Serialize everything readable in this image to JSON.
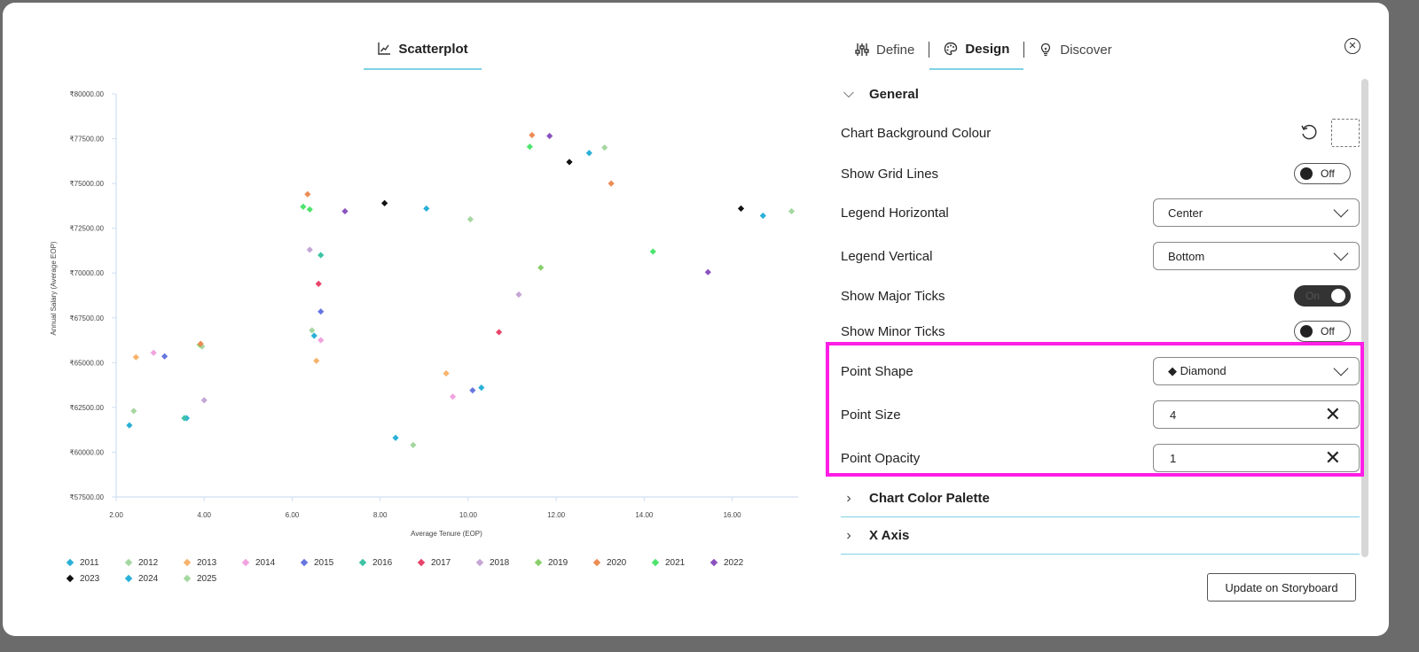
{
  "tabs": {
    "chart": "Scatterplot",
    "define": "Define",
    "design": "Design",
    "discover": "Discover"
  },
  "panel": {
    "general_label": "General",
    "chart_bg_label": "Chart Background Colour",
    "grid_lines": {
      "label": "Show Grid Lines",
      "state": "Off"
    },
    "legend_horizontal": {
      "label": "Legend Horizontal",
      "value": "Center"
    },
    "legend_vertical": {
      "label": "Legend Vertical",
      "value": "Bottom"
    },
    "major_ticks": {
      "label": "Show Major Ticks",
      "state": "On"
    },
    "minor_ticks": {
      "label": "Show Minor Ticks",
      "state": "Off"
    },
    "point_shape": {
      "label": "Point Shape",
      "value": "◆ Diamond"
    },
    "point_size": {
      "label": "Point Size",
      "value": "4"
    },
    "point_opacity": {
      "label": "Point Opacity",
      "value": "1"
    },
    "palette_label": "Chart Color Palette",
    "xaxis_label": "X Axis"
  },
  "update_button": "Update on Storyboard",
  "icons": {
    "chart_tab": "scatter-chart-icon",
    "define": "sliders-icon",
    "design": "palette-icon",
    "discover": "lightbulb-icon",
    "close": "close-icon",
    "reset": "reset-icon"
  },
  "colors": {
    "accent": "#7fd3e6",
    "highlight": "#ff1ee6"
  },
  "chart_data": {
    "type": "scatter",
    "xlabel": "Average Tenure (EOP)",
    "ylabel": "Annual Salary (Average EOP)",
    "xlim": [
      2,
      17.5
    ],
    "ylim": [
      57500,
      80000
    ],
    "xticks": [
      "2.00",
      "4.00",
      "6.00",
      "8.00",
      "10.00",
      "12.00",
      "14.00",
      "16.00"
    ],
    "xtick_values": [
      2,
      4,
      6,
      8,
      10,
      12,
      14,
      16
    ],
    "yticks": [
      "₹57500.00",
      "₹60000.00",
      "₹62500.00",
      "₹65000.00",
      "₹67500.00",
      "₹70000.00",
      "₹72500.00",
      "₹75000.00",
      "₹77500.00",
      "₹80000.00"
    ],
    "ytick_values": [
      57500,
      60000,
      62500,
      65000,
      67500,
      70000,
      72500,
      75000,
      77500,
      80000
    ],
    "grid": false,
    "legend_position": "bottom-left",
    "series": [
      {
        "name": "2011",
        "color": "#2ab0d8",
        "points": [
          [
            2.3,
            61500
          ],
          [
            6.5,
            66500
          ],
          [
            9.05,
            73600
          ],
          [
            12.75,
            76700
          ],
          [
            16.7,
            73200
          ],
          [
            8.35,
            60800
          ],
          [
            10.3,
            63600
          ],
          [
            3.6,
            61900
          ]
        ]
      },
      {
        "name": "2012",
        "color": "#a5d7a0",
        "points": [
          [
            2.4,
            62300
          ],
          [
            6.45,
            66800
          ],
          [
            8.75,
            60400
          ],
          [
            10.05,
            73000
          ],
          [
            13.1,
            77000
          ],
          [
            17.35,
            73450
          ],
          [
            3.95,
            65900
          ]
        ]
      },
      {
        "name": "2013",
        "color": "#f7b36b",
        "points": [
          [
            2.45,
            65300
          ],
          [
            6.55,
            65100
          ],
          [
            9.5,
            64400
          ]
        ]
      },
      {
        "name": "2014",
        "color": "#f1a3df",
        "points": [
          [
            2.85,
            65550
          ],
          [
            6.65,
            66250
          ],
          [
            9.65,
            63100
          ]
        ]
      },
      {
        "name": "2015",
        "color": "#6777e0",
        "points": [
          [
            3.1,
            65350
          ],
          [
            6.65,
            67850
          ],
          [
            10.1,
            63450
          ]
        ]
      },
      {
        "name": "2016",
        "color": "#3ec3a6",
        "points": [
          [
            3.55,
            61900
          ],
          [
            6.65,
            71000
          ]
        ]
      },
      {
        "name": "2017",
        "color": "#e8446a",
        "points": [
          [
            6.6,
            69400
          ],
          [
            10.7,
            66700
          ]
        ]
      },
      {
        "name": "2018",
        "color": "#c5a6d5",
        "points": [
          [
            4.0,
            62900
          ],
          [
            6.4,
            71300
          ],
          [
            11.15,
            68800
          ]
        ]
      },
      {
        "name": "2019",
        "color": "#8bcf6c",
        "points": [
          [
            3.9,
            66000
          ],
          [
            11.65,
            70300
          ]
        ]
      },
      {
        "name": "2020",
        "color": "#ec8d55",
        "points": [
          [
            6.35,
            74400
          ],
          [
            11.45,
            77700
          ],
          [
            13.25,
            75000
          ],
          [
            3.92,
            66050
          ]
        ]
      },
      {
        "name": "2021",
        "color": "#4ee46f",
        "points": [
          [
            6.25,
            73700
          ],
          [
            6.4,
            73550
          ],
          [
            11.4,
            77050
          ],
          [
            14.2,
            71200
          ]
        ]
      },
      {
        "name": "2022",
        "color": "#8b52bf",
        "points": [
          [
            7.2,
            73450
          ],
          [
            11.85,
            77650
          ],
          [
            15.45,
            70050
          ]
        ]
      },
      {
        "name": "2023",
        "color": "#111111",
        "points": [
          [
            8.1,
            73900
          ],
          [
            12.3,
            76200
          ],
          [
            16.2,
            73600
          ]
        ]
      },
      {
        "name": "2024",
        "color": "#2ab0d8",
        "points": []
      },
      {
        "name": "2025",
        "color": "#a5d7a0",
        "points": []
      }
    ]
  }
}
